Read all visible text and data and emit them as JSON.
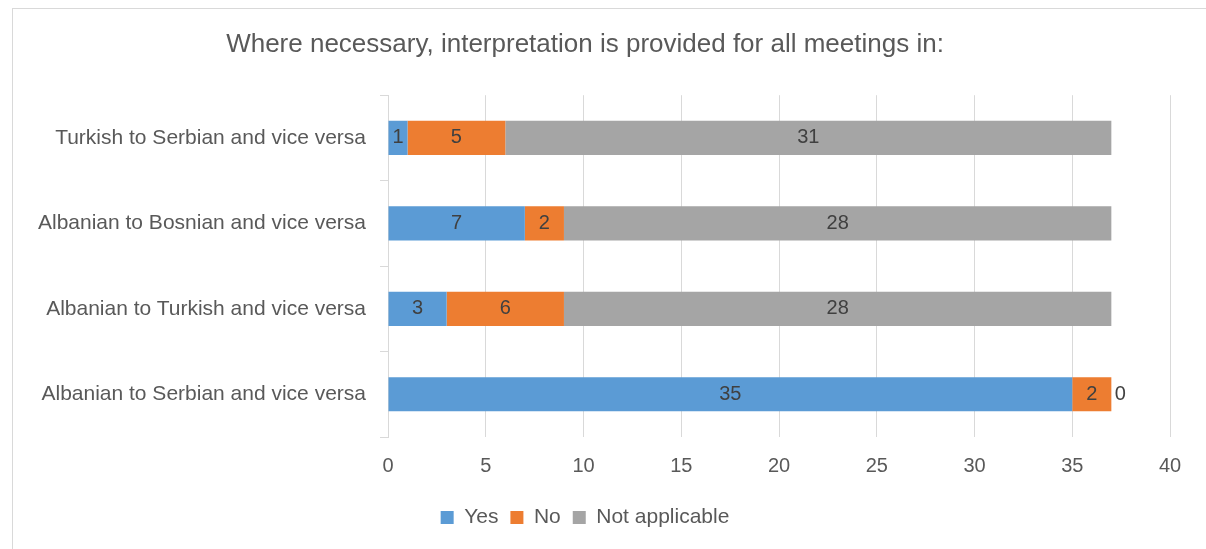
{
  "chart_data": {
    "type": "bar",
    "orientation": "horizontal",
    "stacked": true,
    "title": "Where necessary, interpretation is provided for all meetings in:",
    "categories": [
      "Turkish to Serbian and vice versa",
      "Albanian to Bosnian and vice versa",
      "Albanian to Turkish and vice versa",
      "Albanian to Serbian and vice versa"
    ],
    "series": [
      {
        "name": "Yes",
        "color": "#5b9bd5",
        "values": [
          1,
          7,
          3,
          35
        ]
      },
      {
        "name": "No",
        "color": "#ed7d31",
        "values": [
          5,
          2,
          6,
          2
        ]
      },
      {
        "name": "Not applicable",
        "color": "#a5a5a5",
        "values": [
          31,
          28,
          28,
          0
        ]
      }
    ],
    "xlim": [
      0,
      40
    ],
    "xticks": [
      0,
      5,
      10,
      15,
      20,
      25,
      30,
      35,
      40
    ],
    "grid": "x",
    "legend": "bottom",
    "data_labels": true
  }
}
